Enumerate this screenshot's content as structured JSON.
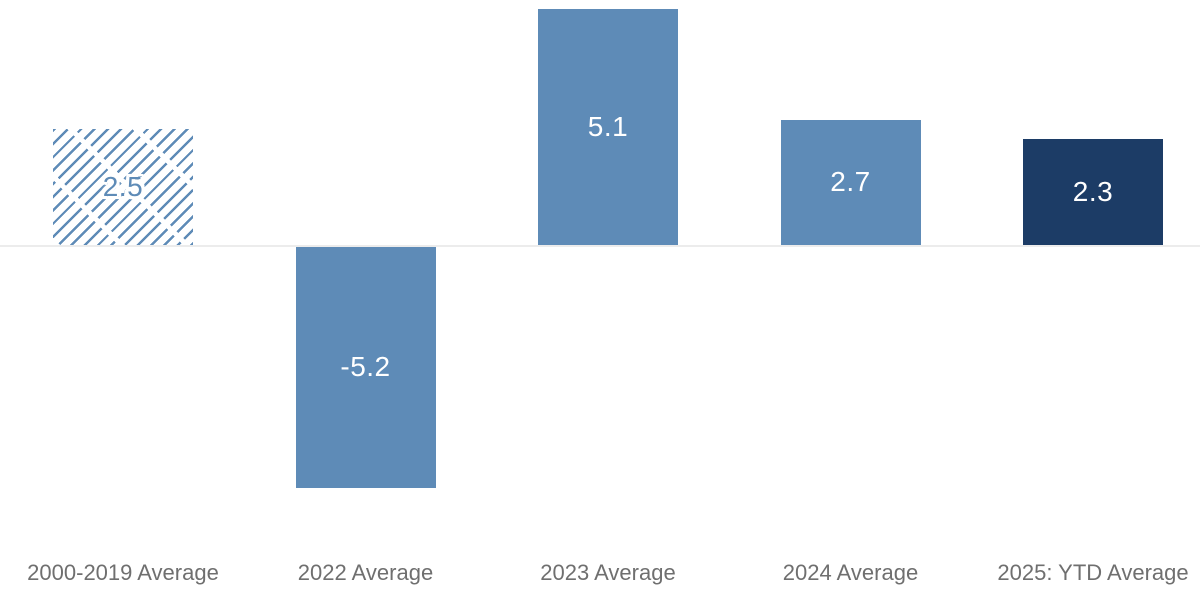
{
  "chart_data": {
    "type": "bar",
    "title": "",
    "xlabel": "",
    "ylabel": "",
    "categories": [
      "2000-2019 Average",
      "2022 Average",
      "2023 Average",
      "2024 Average",
      "2025: YTD Average"
    ],
    "values": [
      2.5,
      -5.2,
      5.1,
      2.7,
      2.3
    ],
    "value_labels": [
      "2.5",
      "-5.2",
      "5.1",
      "2.7",
      "2.3"
    ],
    "bar_styles": [
      "hatched",
      "solid",
      "solid",
      "solid",
      "dark"
    ],
    "baseline": 0,
    "ylim": [
      -5.6,
      5.3
    ],
    "grid": false,
    "legend": false,
    "colors": {
      "bar_blue": "#5E8BB7",
      "bar_dark_navy": "#1C3C66",
      "hatch_stripe": "#5E8BB7",
      "axis_line": "#ECECEC",
      "category_label": "#6F6F6F",
      "value_label_on_solid": "#FFFFFF",
      "value_label_on_hatched": "#5E8BB7"
    }
  }
}
